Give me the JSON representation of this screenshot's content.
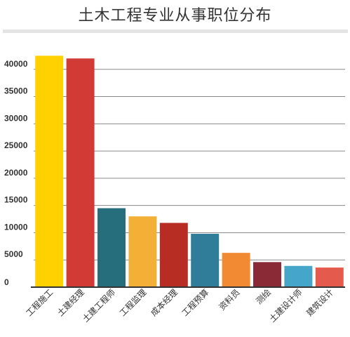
{
  "chart_data": {
    "type": "bar",
    "title": "土木工程专业从事职位分布",
    "xlabel": "",
    "ylabel": "",
    "ylim": [
      0,
      45000
    ],
    "yticks": [
      0,
      5000,
      10000,
      15000,
      20000,
      25000,
      30000,
      35000,
      40000
    ],
    "grid": true,
    "legend": "none",
    "categories": [
      "工程施工",
      "土建经理",
      "土建工程师",
      "工程监理",
      "成本经理",
      "工程预算",
      "资料员",
      "测绘",
      "土建设计师",
      "建筑设计"
    ],
    "values": [
      42500,
      42000,
      14500,
      13000,
      11800,
      9800,
      6300,
      4600,
      3900,
      3600
    ],
    "colors": [
      "#FFD100",
      "#D23A35",
      "#276E7C",
      "#F2B136",
      "#B72D24",
      "#2F7D99",
      "#F28A33",
      "#8A2A37",
      "#45A6CA",
      "#E45A4D"
    ]
  }
}
